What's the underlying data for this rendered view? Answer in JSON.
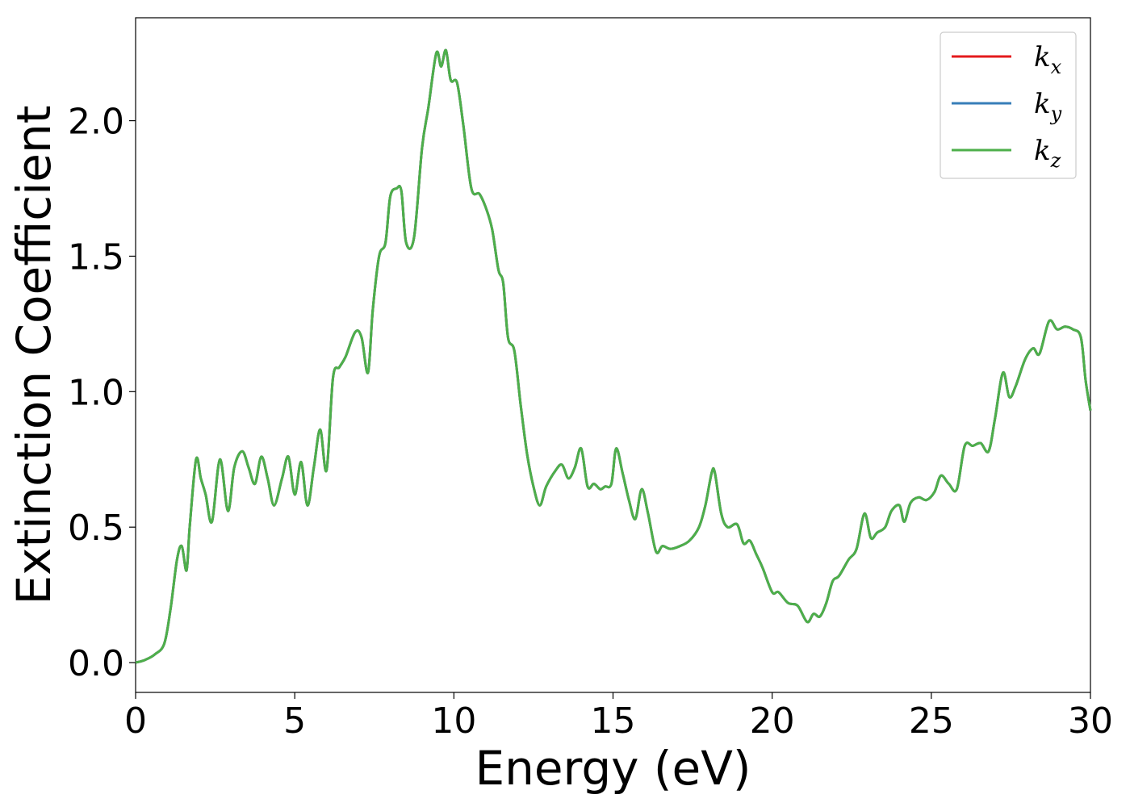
{
  "chart_data": {
    "type": "line",
    "title": "",
    "xlabel": "Energy (eV)",
    "ylabel": "Extinction Coefficient",
    "xlim": [
      0,
      30
    ],
    "ylim": [
      -0.11,
      2.38
    ],
    "xticks": [
      0,
      5,
      10,
      15,
      20,
      25,
      30
    ],
    "xtick_labels": [
      "0",
      "5",
      "10",
      "15",
      "20",
      "25",
      "30"
    ],
    "yticks": [
      0.0,
      0.5,
      1.0,
      1.5,
      2.0
    ],
    "ytick_labels": [
      "0.0",
      "0.5",
      "1.0",
      "1.5",
      "2.0"
    ],
    "grid": false,
    "legend_position": "top-right",
    "x": [
      0,
      0.3,
      0.6,
      0.9,
      1.1,
      1.3,
      1.45,
      1.6,
      1.7,
      1.9,
      2.05,
      2.2,
      2.4,
      2.65,
      2.9,
      3.1,
      3.35,
      3.55,
      3.75,
      3.95,
      4.15,
      4.35,
      4.6,
      4.8,
      5.0,
      5.2,
      5.4,
      5.6,
      5.8,
      6.0,
      6.2,
      6.4,
      6.6,
      6.9,
      7.1,
      7.3,
      7.45,
      7.65,
      7.85,
      8.0,
      8.2,
      8.35,
      8.5,
      8.75,
      9.0,
      9.2,
      9.45,
      9.6,
      9.75,
      9.9,
      10.1,
      10.3,
      10.55,
      10.8,
      11.0,
      11.2,
      11.4,
      11.55,
      11.7,
      11.9,
      12.1,
      12.3,
      12.5,
      12.7,
      12.9,
      13.2,
      13.4,
      13.6,
      13.8,
      14.0,
      14.2,
      14.4,
      14.6,
      14.75,
      14.95,
      15.1,
      15.3,
      15.5,
      15.7,
      15.9,
      16.1,
      16.35,
      16.55,
      16.8,
      17.1,
      17.4,
      17.7,
      17.9,
      18.1,
      18.2,
      18.4,
      18.6,
      18.9,
      19.1,
      19.3,
      19.5,
      19.7,
      20.0,
      20.2,
      20.5,
      20.8,
      21.1,
      21.3,
      21.5,
      21.7,
      21.9,
      22.1,
      22.4,
      22.65,
      22.9,
      23.1,
      23.3,
      23.55,
      23.75,
      24.0,
      24.15,
      24.35,
      24.6,
      24.85,
      25.1,
      25.3,
      25.55,
      25.8,
      26.05,
      26.3,
      26.55,
      26.8,
      27.0,
      27.25,
      27.45,
      27.65,
      27.95,
      28.2,
      28.4,
      28.7,
      28.95,
      29.2,
      29.45,
      29.7,
      29.85,
      30.0
    ],
    "series": [
      {
        "name": "x",
        "color": "#e41a1c"
      },
      {
        "name": "y",
        "color": "#377eb8"
      },
      {
        "name": "z",
        "color": "#4daf4a",
        "values": [
          0.0,
          0.01,
          0.03,
          0.07,
          0.2,
          0.38,
          0.43,
          0.34,
          0.5,
          0.75,
          0.68,
          0.62,
          0.52,
          0.75,
          0.56,
          0.72,
          0.78,
          0.72,
          0.66,
          0.76,
          0.68,
          0.58,
          0.68,
          0.76,
          0.62,
          0.74,
          0.58,
          0.72,
          0.86,
          0.71,
          1.05,
          1.09,
          1.13,
          1.22,
          1.2,
          1.07,
          1.3,
          1.5,
          1.55,
          1.72,
          1.75,
          1.74,
          1.55,
          1.57,
          1.9,
          2.05,
          2.25,
          2.2,
          2.26,
          2.15,
          2.14,
          1.98,
          1.75,
          1.73,
          1.68,
          1.6,
          1.45,
          1.4,
          1.2,
          1.15,
          0.95,
          0.77,
          0.65,
          0.58,
          0.65,
          0.71,
          0.73,
          0.68,
          0.72,
          0.79,
          0.65,
          0.66,
          0.64,
          0.65,
          0.66,
          0.79,
          0.7,
          0.6,
          0.53,
          0.64,
          0.55,
          0.41,
          0.43,
          0.42,
          0.43,
          0.45,
          0.5,
          0.58,
          0.7,
          0.7,
          0.55,
          0.5,
          0.51,
          0.44,
          0.45,
          0.4,
          0.35,
          0.26,
          0.26,
          0.22,
          0.21,
          0.15,
          0.18,
          0.17,
          0.22,
          0.3,
          0.32,
          0.38,
          0.42,
          0.55,
          0.46,
          0.48,
          0.5,
          0.56,
          0.58,
          0.52,
          0.59,
          0.61,
          0.6,
          0.63,
          0.69,
          0.66,
          0.64,
          0.8,
          0.8,
          0.81,
          0.78,
          0.9,
          1.07,
          0.98,
          1.02,
          1.12,
          1.16,
          1.14,
          1.26,
          1.23,
          1.24,
          1.23,
          1.2,
          1.04,
          0.93
        ]
      }
    ],
    "legend": [
      {
        "base": "k",
        "sub": "x",
        "color": "#e41a1c"
      },
      {
        "base": "k",
        "sub": "y",
        "color": "#377eb8"
      },
      {
        "base": "k",
        "sub": "z",
        "color": "#4daf4a"
      }
    ]
  }
}
